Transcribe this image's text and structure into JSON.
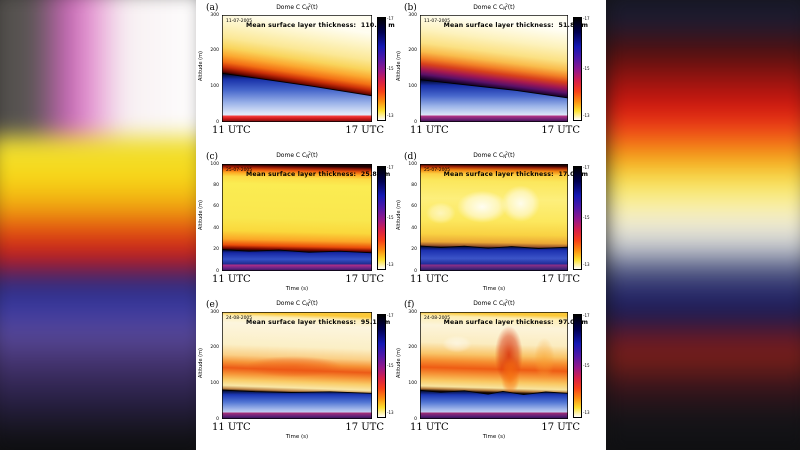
{
  "figure": {
    "title": {
      "prefix": "Dome C C",
      "sub": "N",
      "sup": "2",
      "suffix": "(t)"
    },
    "y_label": "Altitude (m)",
    "x_axis": {
      "left": "11 UTC",
      "right": "17 UTC",
      "label": "Time (s)"
    },
    "colorbar": {
      "ticks": [
        "-17",
        "-15",
        "-13"
      ],
      "stops": [
        [
          0,
          "#000000"
        ],
        [
          0.14,
          "#000050"
        ],
        [
          0.28,
          "#1418b4"
        ],
        [
          0.4,
          "#5018a8"
        ],
        [
          0.52,
          "#981888"
        ],
        [
          0.62,
          "#d82048"
        ],
        [
          0.72,
          "#f84018"
        ],
        [
          0.82,
          "#fb9010"
        ],
        [
          0.91,
          "#fde030"
        ],
        [
          1,
          "#ffffff"
        ]
      ]
    }
  },
  "chart_data": [
    {
      "type": "heatmap",
      "panel_label": "(a)",
      "date": "11-07-2005",
      "annotation": "Mean surface layer thickness:  110.35 m",
      "mean_surface_layer_thickness_m": 110.35,
      "x_range": [
        "11 UTC",
        "17 UTC"
      ],
      "ylabel": "Altitude (m)",
      "yticks": [
        "300",
        "200",
        "100",
        "0"
      ],
      "tilt": 0.22,
      "sky_stops": [
        [
          0,
          "#fffdf0"
        ],
        [
          0.12,
          "#fdf4c4"
        ],
        [
          0.24,
          "#fbe896"
        ],
        [
          0.33,
          "#f9d45c"
        ],
        [
          0.4,
          "#fba830"
        ],
        [
          0.46,
          "#f37014"
        ],
        [
          0.505,
          "#cc3008"
        ],
        [
          0.545,
          "#700800"
        ],
        [
          0.565,
          "#1c0000"
        ],
        [
          1,
          "#0c0000"
        ]
      ],
      "below_stops": [
        [
          0,
          "#00041c"
        ],
        [
          0.12,
          "#1830a8"
        ],
        [
          0.35,
          "#4868cc"
        ],
        [
          0.6,
          "#98b0e8"
        ],
        [
          0.82,
          "#dce6f8"
        ],
        [
          1,
          "#f4f8ff"
        ]
      ],
      "strip_stops": [
        [
          0,
          "#ff4848"
        ],
        [
          0.5,
          "#cc1818"
        ],
        [
          1,
          "#6a0e10"
        ]
      ],
      "blobs": [],
      "surface_line": [
        [
          0,
          0.545
        ],
        [
          0.3,
          0.605
        ],
        [
          0.6,
          0.665
        ],
        [
          1,
          0.755
        ]
      ]
    },
    {
      "type": "heatmap",
      "panel_label": "(b)",
      "date": "11-07-2005",
      "annotation": "Mean surface layer thickness:  51.89 m",
      "mean_surface_layer_thickness_m": 51.89,
      "x_range": [
        "11 UTC",
        "17 UTC"
      ],
      "ylabel": "Altitude (m)",
      "yticks": [
        "300",
        "200",
        "100",
        "0"
      ],
      "tilt": 0.18,
      "sky_stops": [
        [
          0,
          "#fffef4"
        ],
        [
          0.16,
          "#fdf2bc"
        ],
        [
          0.28,
          "#fbe184"
        ],
        [
          0.36,
          "#f9bc4c"
        ],
        [
          0.42,
          "#f28026"
        ],
        [
          0.47,
          "#d8401c"
        ],
        [
          0.52,
          "#a51850"
        ],
        [
          0.565,
          "#5a1068"
        ],
        [
          0.6,
          "#1c0430"
        ],
        [
          0.62,
          "#060014"
        ],
        [
          1,
          "#060014"
        ]
      ],
      "below_stops": [
        [
          0,
          "#000420"
        ],
        [
          0.14,
          "#1830a8"
        ],
        [
          0.38,
          "#4868cc"
        ],
        [
          0.62,
          "#9ab2e8"
        ],
        [
          0.84,
          "#dde7f8"
        ],
        [
          1,
          "#f4f8ff"
        ]
      ],
      "strip_stops": [
        [
          0,
          "#c03888"
        ],
        [
          0.5,
          "#7a2478"
        ],
        [
          1,
          "#361050"
        ]
      ],
      "blobs": [],
      "surface_line": [
        [
          0,
          0.605
        ],
        [
          0.35,
          0.66
        ],
        [
          0.65,
          0.705
        ],
        [
          1,
          0.775
        ]
      ]
    },
    {
      "type": "heatmap",
      "panel_label": "(c)",
      "date": "25-07-2005",
      "annotation": "Mean surface layer thickness:  25.84 m",
      "mean_surface_layer_thickness_m": 25.84,
      "x_range": [
        "11 UTC",
        "17 UTC"
      ],
      "xlabel": "Time (s)",
      "ylabel": "Altitude (m)",
      "yticks": [
        "100",
        "80",
        "60",
        "40",
        "20",
        "0"
      ],
      "tilt": 0.03,
      "sky_stops": [
        [
          0,
          "#1c0000"
        ],
        [
          0.02,
          "#8c1204"
        ],
        [
          0.05,
          "#ee5c0c"
        ],
        [
          0.08,
          "#fdac24"
        ],
        [
          0.115,
          "#fcdc46"
        ],
        [
          0.18,
          "#fbec52"
        ],
        [
          0.5,
          "#f9e74e"
        ],
        [
          0.62,
          "#fad83c"
        ],
        [
          0.7,
          "#fba626"
        ],
        [
          0.755,
          "#ea4c0a"
        ],
        [
          0.785,
          "#7c0800"
        ],
        [
          0.805,
          "#180000"
        ],
        [
          1,
          "#180000"
        ]
      ],
      "below_stops": [
        [
          0,
          "#000424"
        ],
        [
          0.15,
          "#1628a4"
        ],
        [
          0.45,
          "#3450c6"
        ],
        [
          0.75,
          "#16207e"
        ],
        [
          1,
          "#070a3a"
        ]
      ],
      "strip_stops": [
        [
          0,
          "#b83088"
        ],
        [
          0.55,
          "#6c2486"
        ],
        [
          1,
          "#2c1454"
        ]
      ],
      "blobs": [],
      "surface_line": [
        [
          0,
          0.8
        ],
        [
          0.18,
          0.815
        ],
        [
          0.38,
          0.805
        ],
        [
          0.58,
          0.825
        ],
        [
          0.78,
          0.815
        ],
        [
          1,
          0.83
        ]
      ]
    },
    {
      "type": "heatmap",
      "panel_label": "(d)",
      "date": "25-07-2005",
      "annotation": "Mean surface layer thickness:  17.00 m",
      "mean_surface_layer_thickness_m": 17.0,
      "x_range": [
        "11 UTC",
        "17 UTC"
      ],
      "xlabel": "Time (s)",
      "ylabel": "Altitude (m)",
      "yticks": [
        "100",
        "80",
        "60",
        "40",
        "20",
        "0"
      ],
      "tilt": 0.02,
      "sky_stops": [
        [
          0,
          "#240000"
        ],
        [
          0.02,
          "#9c2006"
        ],
        [
          0.05,
          "#f0820e"
        ],
        [
          0.09,
          "#fdcf42"
        ],
        [
          0.15,
          "#fbe75c"
        ],
        [
          0.32,
          "#fdef7c"
        ],
        [
          0.52,
          "#fce85e"
        ],
        [
          0.65,
          "#f9d243"
        ],
        [
          0.725,
          "#eba836"
        ],
        [
          0.76,
          "#96522a"
        ],
        [
          0.775,
          "#1c0a12"
        ],
        [
          1,
          "#1c0a12"
        ]
      ],
      "below_stops": [
        [
          0,
          "#000428"
        ],
        [
          0.18,
          "#1c30b0"
        ],
        [
          0.5,
          "#3c54c8"
        ],
        [
          0.8,
          "#161e88"
        ],
        [
          1,
          "#070a40"
        ]
      ],
      "strip_stops": [
        [
          0,
          "#983088"
        ],
        [
          0.55,
          "#50287e"
        ],
        [
          1,
          "#201656"
        ]
      ],
      "blobs": [
        {
          "cx": 0.42,
          "cy": 0.4,
          "rx": 0.17,
          "ry": 0.15,
          "color": "#ffffff",
          "opacity": 0.9
        },
        {
          "cx": 0.68,
          "cy": 0.37,
          "rx": 0.13,
          "ry": 0.17,
          "color": "#ffffff",
          "opacity": 0.85
        },
        {
          "cx": 0.14,
          "cy": 0.46,
          "rx": 0.1,
          "ry": 0.1,
          "color": "#ffffff",
          "opacity": 0.55
        }
      ],
      "surface_line": [
        [
          0,
          0.765
        ],
        [
          0.14,
          0.78
        ],
        [
          0.3,
          0.768
        ],
        [
          0.46,
          0.787
        ],
        [
          0.62,
          0.772
        ],
        [
          0.8,
          0.79
        ],
        [
          1,
          0.778
        ]
      ]
    },
    {
      "type": "heatmap",
      "panel_label": "(e)",
      "date": "24-08-2005",
      "annotation": "Mean surface layer thickness:  95.15 m",
      "mean_surface_layer_thickness_m": 95.15,
      "x_range": [
        "11 UTC",
        "17 UTC"
      ],
      "xlabel": "Time (s)",
      "ylabel": "Altitude (m)",
      "yticks": [
        "300",
        "200",
        "100",
        "0"
      ],
      "tilt": 0.05,
      "sky_stops": [
        [
          0,
          "#fbc838"
        ],
        [
          0.035,
          "#fdefba"
        ],
        [
          0.1,
          "#fcf5de"
        ],
        [
          0.3,
          "#fbefc6"
        ],
        [
          0.4,
          "#facf86"
        ],
        [
          0.465,
          "#f69336"
        ],
        [
          0.52,
          "#ec5a16"
        ],
        [
          0.575,
          "#f69336"
        ],
        [
          0.63,
          "#f9cb66"
        ],
        [
          0.685,
          "#f9e7a6"
        ],
        [
          0.715,
          "#c08848"
        ],
        [
          0.735,
          "#180602"
        ],
        [
          1,
          "#180602"
        ]
      ],
      "below_stops": [
        [
          0,
          "#000620"
        ],
        [
          0.16,
          "#1c38b4"
        ],
        [
          0.42,
          "#5276d4"
        ],
        [
          0.68,
          "#a8bcec"
        ],
        [
          0.88,
          "#e0e8fa"
        ],
        [
          1,
          "#f6f9ff"
        ]
      ],
      "strip_stops": [
        [
          0,
          "#b03078"
        ],
        [
          0.55,
          "#64227a"
        ],
        [
          1,
          "#2a124e"
        ]
      ],
      "blobs": [
        {
          "cx": 0.48,
          "cy": 0.51,
          "rx": 0.32,
          "ry": 0.1,
          "color": "#ee5414",
          "opacity": 0.5
        }
      ],
      "surface_line": [
        [
          0,
          0.73
        ],
        [
          0.22,
          0.745
        ],
        [
          0.46,
          0.752
        ],
        [
          0.72,
          0.746
        ],
        [
          1,
          0.76
        ]
      ]
    },
    {
      "type": "heatmap",
      "panel_label": "(f)",
      "date": "24-08-2005",
      "annotation": "Mean surface layer thickness:  97.09 m",
      "mean_surface_layer_thickness_m": 97.09,
      "x_range": [
        "11 UTC",
        "17 UTC"
      ],
      "xlabel": "Time (s)",
      "ylabel": "Altitude (m)",
      "yticks": [
        "300",
        "200",
        "100",
        "0"
      ],
      "tilt": 0.04,
      "sky_stops": [
        [
          0,
          "#fbc838"
        ],
        [
          0.035,
          "#fdedb2"
        ],
        [
          0.12,
          "#fcf4da"
        ],
        [
          0.28,
          "#fbecc0"
        ],
        [
          0.385,
          "#f9c468"
        ],
        [
          0.45,
          "#f68e30"
        ],
        [
          0.515,
          "#ee5c14"
        ],
        [
          0.575,
          "#f69336"
        ],
        [
          0.635,
          "#f9c862"
        ],
        [
          0.69,
          "#f8e49e"
        ],
        [
          0.715,
          "#b8803e"
        ],
        [
          0.735,
          "#160600"
        ],
        [
          1,
          "#160600"
        ]
      ],
      "below_stops": [
        [
          0,
          "#000620"
        ],
        [
          0.16,
          "#1c38b4"
        ],
        [
          0.42,
          "#5276d4"
        ],
        [
          0.68,
          "#a8bcec"
        ],
        [
          0.88,
          "#e0e8fa"
        ],
        [
          1,
          "#f6f9ff"
        ]
      ],
      "strip_stops": [
        [
          0,
          "#a82c74"
        ],
        [
          0.55,
          "#5e2078"
        ],
        [
          1,
          "#28104c"
        ]
      ],
      "blobs": [
        {
          "cx": 0.6,
          "cy": 0.4,
          "rx": 0.095,
          "ry": 0.27,
          "color": "#d62c06",
          "opacity": 0.85
        },
        {
          "cx": 0.61,
          "cy": 0.6,
          "rx": 0.065,
          "ry": 0.18,
          "color": "#f87410",
          "opacity": 0.8
        },
        {
          "cx": 0.84,
          "cy": 0.44,
          "rx": 0.07,
          "ry": 0.2,
          "color": "#f8a030",
          "opacity": 0.45
        },
        {
          "cx": 0.25,
          "cy": 0.3,
          "rx": 0.1,
          "ry": 0.08,
          "color": "#ffffff",
          "opacity": 0.5
        }
      ],
      "surface_line": [
        [
          0,
          0.732
        ],
        [
          0.14,
          0.75
        ],
        [
          0.3,
          0.736
        ],
        [
          0.46,
          0.768
        ],
        [
          0.56,
          0.742
        ],
        [
          0.7,
          0.772
        ],
        [
          0.85,
          0.748
        ],
        [
          1,
          0.76
        ]
      ]
    }
  ]
}
